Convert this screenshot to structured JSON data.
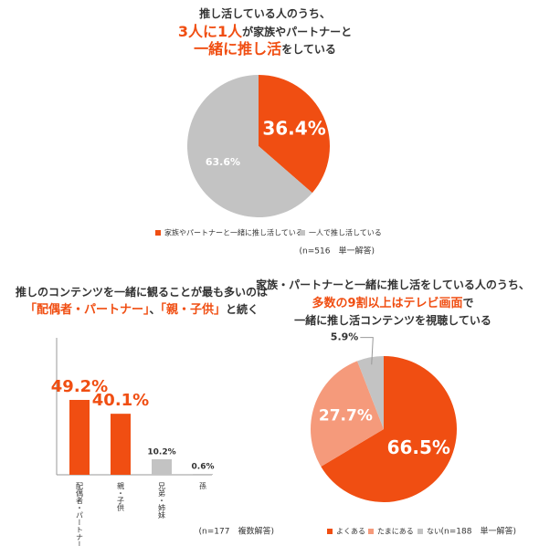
{
  "chart_data": [
    {
      "type": "pie",
      "title": [
        [
          {
            "text": "推し活している人のうち、"
          }
        ],
        [
          {
            "text": "3人に1人",
            "color": "#f04e12"
          },
          {
            "text": "が家族やパートナーと"
          }
        ],
        [
          {
            "text": "一緒に推し活",
            "color": "#f04e12"
          },
          {
            "text": "をしている"
          }
        ]
      ],
      "categories": [
        "家族やパートナーと一緒に推し活している",
        "一人で推し活している"
      ],
      "values": [
        36.4,
        63.6
      ],
      "value_labels": [
        "36.4%",
        "63.6%"
      ],
      "colors": [
        "#f04e12",
        "#c3c3c3"
      ],
      "note": "(n=516　単一解答)"
    },
    {
      "type": "bar",
      "title": [
        [
          {
            "text": "推しのコンテンツを一緒に観ることが最も多いのは"
          }
        ],
        [
          {
            "text": "「配偶者・パートナー」",
            "color": "#f04e12"
          },
          {
            "text": "、"
          },
          {
            "text": "「親・子供」",
            "color": "#f04e12"
          },
          {
            "text": "と続く"
          }
        ]
      ],
      "categories": [
        "配偶者・パートナー",
        "親・子供",
        "兄弟・姉妹",
        "孫"
      ],
      "values": [
        49.2,
        40.1,
        10.2,
        0.6
      ],
      "value_labels": [
        "49.2%",
        "40.1%",
        "10.2%",
        "0.6%"
      ],
      "colors": [
        "#f04e12",
        "#f04e12",
        "#c3c3c3",
        "#c3c3c3"
      ],
      "ylim": [
        0,
        90
      ],
      "note": "(n=177　複数解答)"
    },
    {
      "type": "pie",
      "title": [
        [
          {
            "text": "家族・パートナーと一緒に推し活をしている人のうち、"
          }
        ],
        [
          {
            "text": "多数の9割以上はテレビ画面",
            "color": "#f04e12"
          },
          {
            "text": "で"
          }
        ],
        [
          {
            "text": "一緒に推し活コンテンツを視聴している"
          }
        ]
      ],
      "categories": [
        "よくある",
        "たまにある",
        "ない"
      ],
      "values": [
        66.5,
        27.7,
        5.9
      ],
      "value_labels": [
        "66.5%",
        "27.7%",
        "5.9%"
      ],
      "colors": [
        "#f04e12",
        "#f59a7b",
        "#c3c3c3"
      ],
      "note": "(n=188　単一解答)"
    }
  ]
}
